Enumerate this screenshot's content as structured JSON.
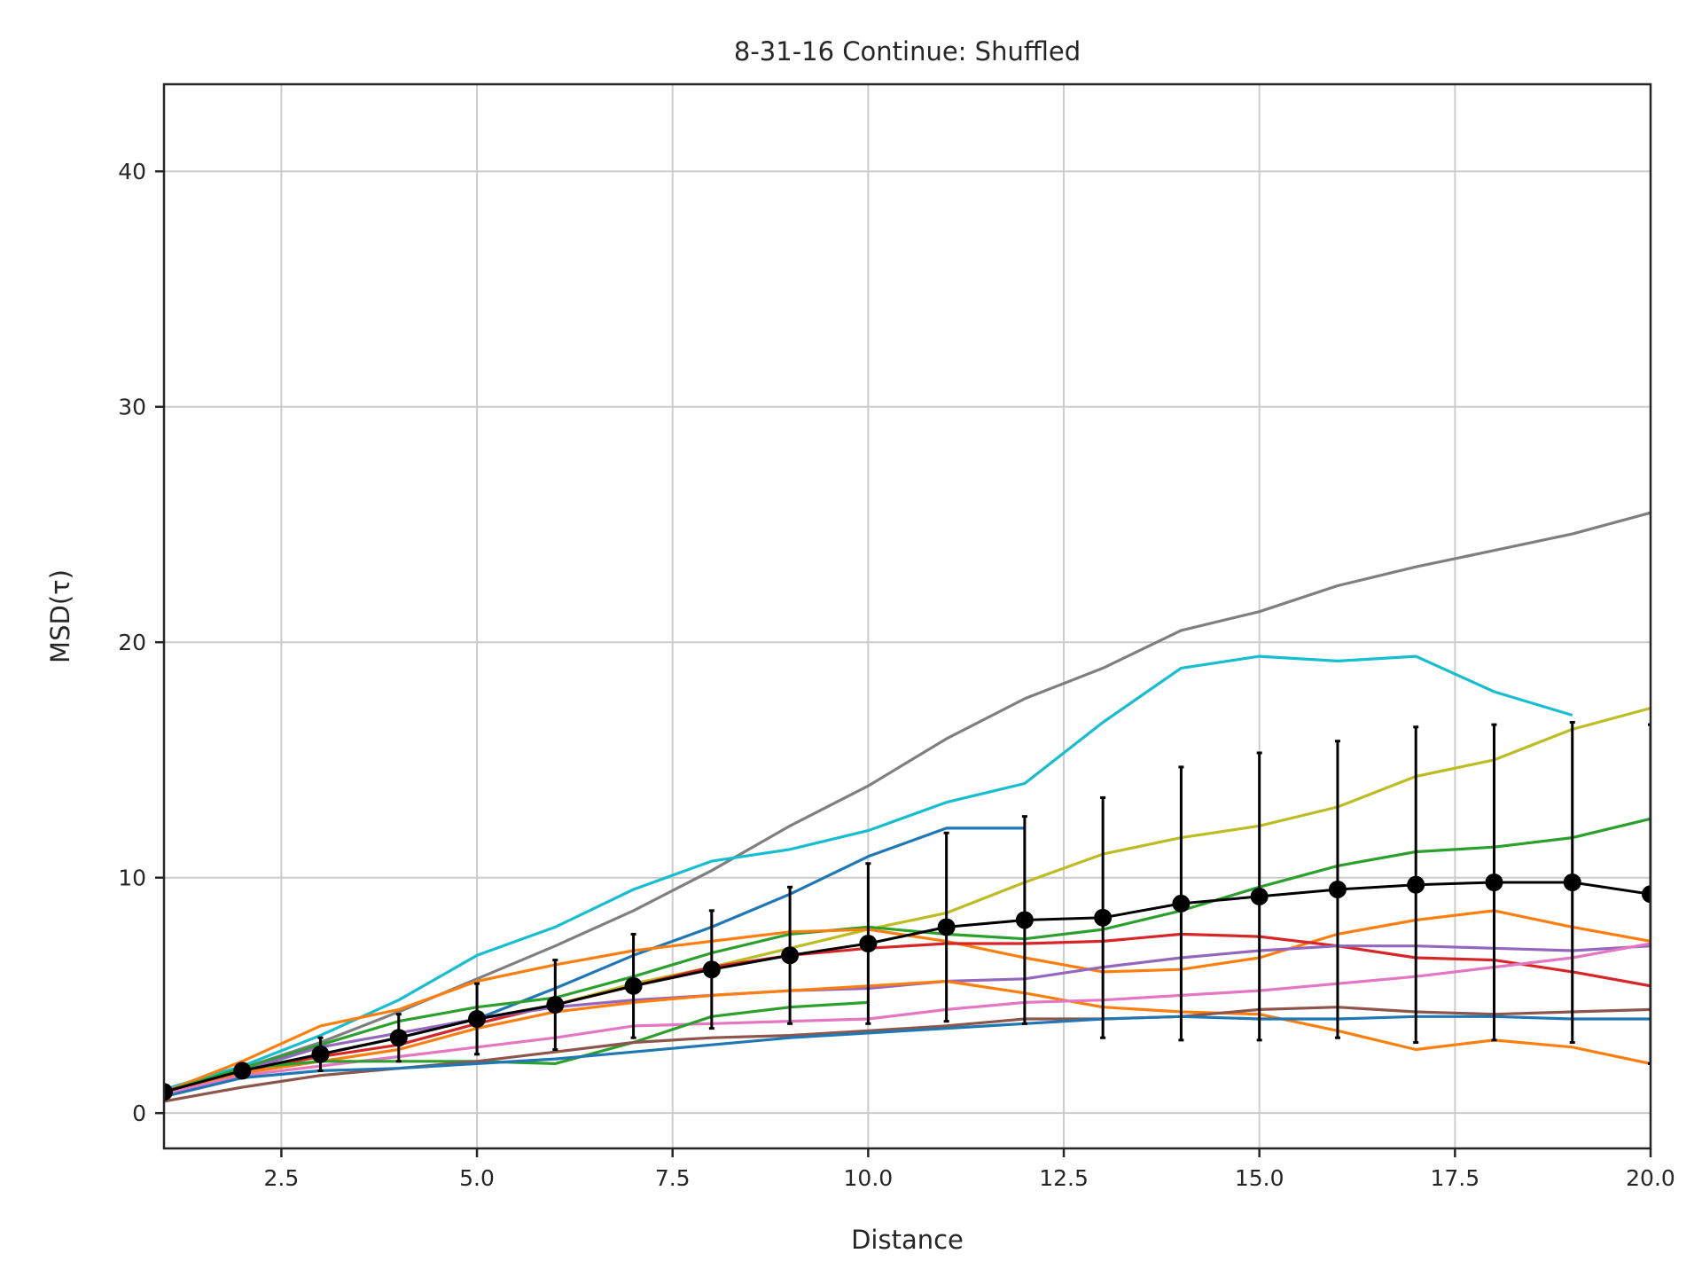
{
  "chart_data": {
    "type": "line",
    "title": "8-31-16 Continue: Shuffled",
    "xlabel": "Distance",
    "ylabel": "MSD(τ)",
    "xlim": [
      1,
      20
    ],
    "ylim": [
      -1.5,
      43.7
    ],
    "xticks": [
      2.5,
      5.0,
      7.5,
      10.0,
      12.5,
      15.0,
      17.5,
      20.0
    ],
    "xtick_labels": [
      "2.5",
      "5.0",
      "7.5",
      "10.0",
      "12.5",
      "15.0",
      "17.5",
      "20.0"
    ],
    "yticks": [
      0,
      10,
      20,
      30,
      40
    ],
    "ytick_labels": [
      "0",
      "10",
      "20",
      "30",
      "40"
    ],
    "grid": true,
    "legend": "none",
    "series": [
      {
        "color": "#7f7f7f",
        "x": [
          1,
          2,
          3,
          4,
          5,
          6,
          7,
          8,
          9,
          10,
          11,
          12,
          13,
          14,
          15,
          16,
          17,
          18,
          19,
          20
        ],
        "values": [
          0.9,
          1.9,
          3.0,
          4.3,
          5.7,
          7.1,
          8.6,
          10.3,
          12.2,
          13.9,
          15.9,
          17.6,
          18.9,
          20.5,
          21.3,
          22.4,
          23.2,
          23.9,
          24.6,
          25.5
        ]
      },
      {
        "color": "#17becf",
        "x": [
          1,
          2,
          3,
          4,
          5,
          6,
          7,
          8,
          9,
          10,
          11,
          12,
          13,
          14,
          15,
          16,
          17,
          18,
          19
        ],
        "values": [
          1.0,
          2.0,
          3.3,
          4.8,
          6.7,
          7.9,
          9.5,
          10.7,
          11.2,
          12.0,
          13.2,
          14.0,
          16.6,
          18.9,
          19.4,
          19.2,
          19.4,
          17.9,
          16.9
        ]
      },
      {
        "color": "#bcbd22",
        "x": [
          1,
          2,
          3,
          4,
          5,
          6,
          7,
          8,
          9,
          10,
          11,
          12,
          13,
          14,
          15,
          16,
          17,
          18,
          19,
          20
        ],
        "values": [
          0.9,
          1.8,
          2.5,
          3.2,
          4.0,
          4.6,
          5.5,
          6.2,
          7.0,
          7.8,
          8.5,
          9.8,
          11.0,
          11.7,
          12.2,
          13.0,
          14.3,
          15.0,
          16.3,
          17.2
        ]
      },
      {
        "color": "#1f77b4",
        "x": [
          1,
          2,
          3,
          4,
          5,
          6,
          7,
          8,
          9,
          10,
          11,
          12
        ],
        "values": [
          0.9,
          1.8,
          2.5,
          3.2,
          4.0,
          5.3,
          6.7,
          7.9,
          9.3,
          10.9,
          12.1,
          12.1
        ]
      },
      {
        "color": "#2ca02c",
        "x": [
          1,
          2,
          3,
          4,
          5,
          6,
          7,
          8,
          9,
          10,
          11,
          12,
          13,
          14,
          15,
          16,
          17,
          18,
          19,
          20
        ],
        "values": [
          0.9,
          1.9,
          2.9,
          3.9,
          4.5,
          4.9,
          5.8,
          6.8,
          7.6,
          7.9,
          7.6,
          7.4,
          7.8,
          8.6,
          9.6,
          10.5,
          11.1,
          11.3,
          11.7,
          12.5
        ]
      },
      {
        "color": "#ff7f0e",
        "x": [
          1,
          2,
          3,
          4,
          5,
          6,
          7,
          8,
          9,
          10,
          11,
          12,
          13,
          14,
          15,
          16,
          17,
          18,
          19,
          20
        ],
        "values": [
          0.9,
          2.2,
          3.7,
          4.4,
          5.6,
          6.3,
          6.9,
          7.3,
          7.7,
          7.8,
          7.3,
          6.6,
          6.0,
          6.1,
          6.6,
          7.6,
          8.2,
          8.6,
          7.9,
          7.3
        ]
      },
      {
        "color": "#d62728",
        "x": [
          1,
          2,
          3,
          4,
          5,
          6,
          7,
          8,
          9,
          10,
          11,
          12,
          13,
          14,
          15,
          16,
          17,
          18,
          19,
          20
        ],
        "values": [
          0.9,
          1.8,
          2.4,
          2.9,
          3.8,
          4.6,
          5.4,
          6.2,
          6.7,
          7.0,
          7.2,
          7.2,
          7.3,
          7.6,
          7.5,
          7.1,
          6.6,
          6.5,
          6.0,
          5.4
        ]
      },
      {
        "color": "#9467bd",
        "x": [
          1,
          2,
          3,
          4,
          5,
          6,
          7,
          8,
          9,
          10,
          11,
          12,
          13,
          14,
          15,
          16,
          17,
          18,
          19,
          20
        ],
        "values": [
          0.9,
          1.8,
          2.8,
          3.4,
          4.0,
          4.5,
          4.8,
          5.0,
          5.2,
          5.3,
          5.6,
          5.7,
          6.2,
          6.6,
          6.9,
          7.1,
          7.1,
          7.0,
          6.9,
          7.1
        ]
      },
      {
        "color": "#ff7f0e",
        "x": [
          1,
          2,
          3,
          4,
          5,
          6,
          7,
          8,
          9,
          10,
          11,
          12,
          13,
          14,
          15,
          16,
          17,
          18,
          19,
          20
        ],
        "values": [
          0.9,
          1.7,
          2.2,
          2.7,
          3.6,
          4.3,
          4.7,
          5.0,
          5.2,
          5.4,
          5.6,
          5.1,
          4.5,
          4.3,
          4.2,
          3.5,
          2.7,
          3.1,
          2.8,
          2.1
        ]
      },
      {
        "color": "#e377c2",
        "x": [
          1,
          2,
          3,
          4,
          5,
          6,
          7,
          8,
          9,
          10,
          11,
          12,
          13,
          14,
          15,
          16,
          17,
          18,
          19,
          20
        ],
        "values": [
          0.8,
          1.6,
          2.0,
          2.4,
          2.8,
          3.2,
          3.7,
          3.8,
          3.9,
          4.0,
          4.4,
          4.7,
          4.8,
          5.0,
          5.2,
          5.5,
          5.8,
          6.2,
          6.6,
          7.2
        ]
      },
      {
        "color": "#2ca02c",
        "x": [
          1,
          2,
          3,
          4,
          5,
          6,
          7,
          8,
          9,
          10
        ],
        "values": [
          0.9,
          1.9,
          2.2,
          2.2,
          2.2,
          2.1,
          3.0,
          4.1,
          4.5,
          4.7
        ]
      },
      {
        "color": "#8c564b",
        "x": [
          1,
          2,
          3,
          4,
          5,
          6,
          7,
          8,
          9,
          10,
          11,
          12,
          13,
          14,
          15,
          16,
          17,
          18,
          19,
          20
        ],
        "values": [
          0.5,
          1.1,
          1.6,
          1.9,
          2.2,
          2.6,
          3.0,
          3.2,
          3.3,
          3.5,
          3.7,
          4.0,
          4.0,
          4.1,
          4.4,
          4.5,
          4.3,
          4.2,
          4.3,
          4.4
        ]
      },
      {
        "color": "#1f77b4",
        "x": [
          1,
          2,
          3,
          4,
          5,
          6,
          7,
          8,
          9,
          10,
          11,
          12,
          13,
          14,
          15,
          16,
          17,
          18,
          19,
          20
        ],
        "values": [
          0.7,
          1.5,
          1.8,
          1.9,
          2.1,
          2.3,
          2.6,
          2.9,
          3.2,
          3.4,
          3.6,
          3.8,
          4.0,
          4.1,
          4.0,
          4.0,
          4.1,
          4.1,
          4.0,
          4.0
        ]
      }
    ],
    "mean": {
      "color": "#000000",
      "x": [
        1,
        2,
        3,
        4,
        5,
        6,
        7,
        8,
        9,
        10,
        11,
        12,
        13,
        14,
        15,
        16,
        17,
        18,
        19,
        20
      ],
      "values": [
        0.9,
        1.8,
        2.5,
        3.2,
        4.0,
        4.6,
        5.4,
        6.1,
        6.7,
        7.2,
        7.9,
        8.2,
        8.3,
        8.9,
        9.2,
        9.5,
        9.7,
        9.8,
        9.8,
        9.3
      ],
      "errors": [
        0.1,
        0.3,
        0.7,
        1.0,
        1.5,
        1.9,
        2.2,
        2.5,
        2.9,
        3.4,
        4.0,
        4.4,
        5.1,
        5.8,
        6.1,
        6.3,
        6.7,
        6.7,
        6.8,
        7.2
      ]
    }
  }
}
